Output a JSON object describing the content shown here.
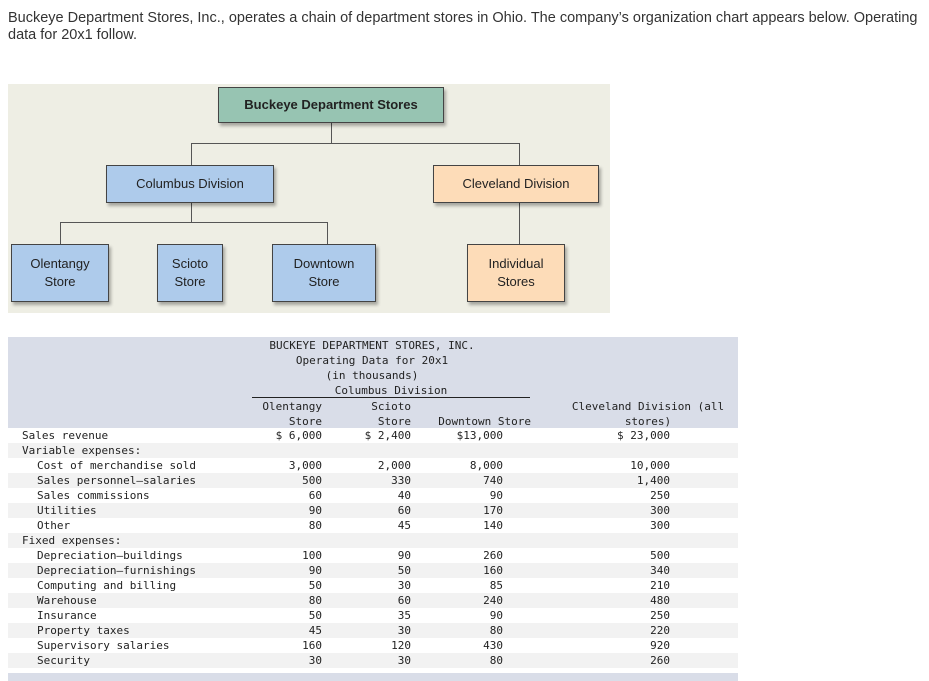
{
  "intro": "Buckeye Department Stores, Inc., operates a chain of department stores in Ohio. The company’s organization chart appears below. Operating data for 20x1 follow.",
  "org": {
    "top": "Buckeye Department Stores",
    "columbus": "Columbus Division",
    "cleveland": "Cleveland Division",
    "olentangy": [
      "Olentangy",
      "Store"
    ],
    "scioto": [
      "Scioto",
      "Store"
    ],
    "downtown": [
      "Downtown",
      "Store"
    ],
    "individual": [
      "Individual",
      "Stores"
    ]
  },
  "table": {
    "title": [
      "BUCKEYE DEPARTMENT STORES, INC.",
      "Operating Data for 20x1",
      "(in thousands)",
      "Columbus Division"
    ],
    "col_headers": [
      [
        "Olentangy",
        "Store"
      ],
      [
        "Scioto",
        "Store"
      ],
      [
        "",
        "Downtown Store"
      ],
      [
        "Cleveland Division (all",
        "stores)"
      ]
    ],
    "rows": [
      {
        "label": "Sales revenue",
        "indent": 0,
        "values": [
          "$ 6,000",
          "$ 2,400",
          "$13,000",
          "$ 23,000"
        ]
      },
      {
        "label": "Variable expenses:",
        "indent": 0,
        "values": [
          "",
          "",
          "",
          ""
        ]
      },
      {
        "label": "Cost of merchandise sold",
        "indent": 1,
        "values": [
          "3,000",
          "2,000",
          "8,000",
          "10,000"
        ]
      },
      {
        "label": "Sales personnel—salaries",
        "indent": 1,
        "values": [
          "500",
          "330",
          "740",
          "1,400"
        ]
      },
      {
        "label": "Sales commissions",
        "indent": 1,
        "values": [
          "60",
          "40",
          "90",
          "250"
        ]
      },
      {
        "label": "Utilities",
        "indent": 1,
        "values": [
          "90",
          "60",
          "170",
          "300"
        ]
      },
      {
        "label": "Other",
        "indent": 1,
        "values": [
          "80",
          "45",
          "140",
          "300"
        ]
      },
      {
        "label": "Fixed expenses:",
        "indent": 0,
        "values": [
          "",
          "",
          "",
          ""
        ]
      },
      {
        "label": "Depreciation—buildings",
        "indent": 1,
        "values": [
          "100",
          "90",
          "260",
          "500"
        ]
      },
      {
        "label": "Depreciation—furnishings",
        "indent": 1,
        "values": [
          "90",
          "50",
          "160",
          "340"
        ]
      },
      {
        "label": "Computing and billing",
        "indent": 1,
        "values": [
          "50",
          "30",
          "85",
          "210"
        ]
      },
      {
        "label": "Warehouse",
        "indent": 1,
        "values": [
          "80",
          "60",
          "240",
          "480"
        ]
      },
      {
        "label": "Insurance",
        "indent": 1,
        "values": [
          "50",
          "35",
          "90",
          "250"
        ]
      },
      {
        "label": "Property taxes",
        "indent": 1,
        "values": [
          "45",
          "30",
          "80",
          "220"
        ]
      },
      {
        "label": "Supervisory salaries",
        "indent": 1,
        "values": [
          "160",
          "120",
          "430",
          "920"
        ]
      },
      {
        "label": "Security",
        "indent": 1,
        "values": [
          "30",
          "30",
          "80",
          "260"
        ]
      }
    ]
  }
}
